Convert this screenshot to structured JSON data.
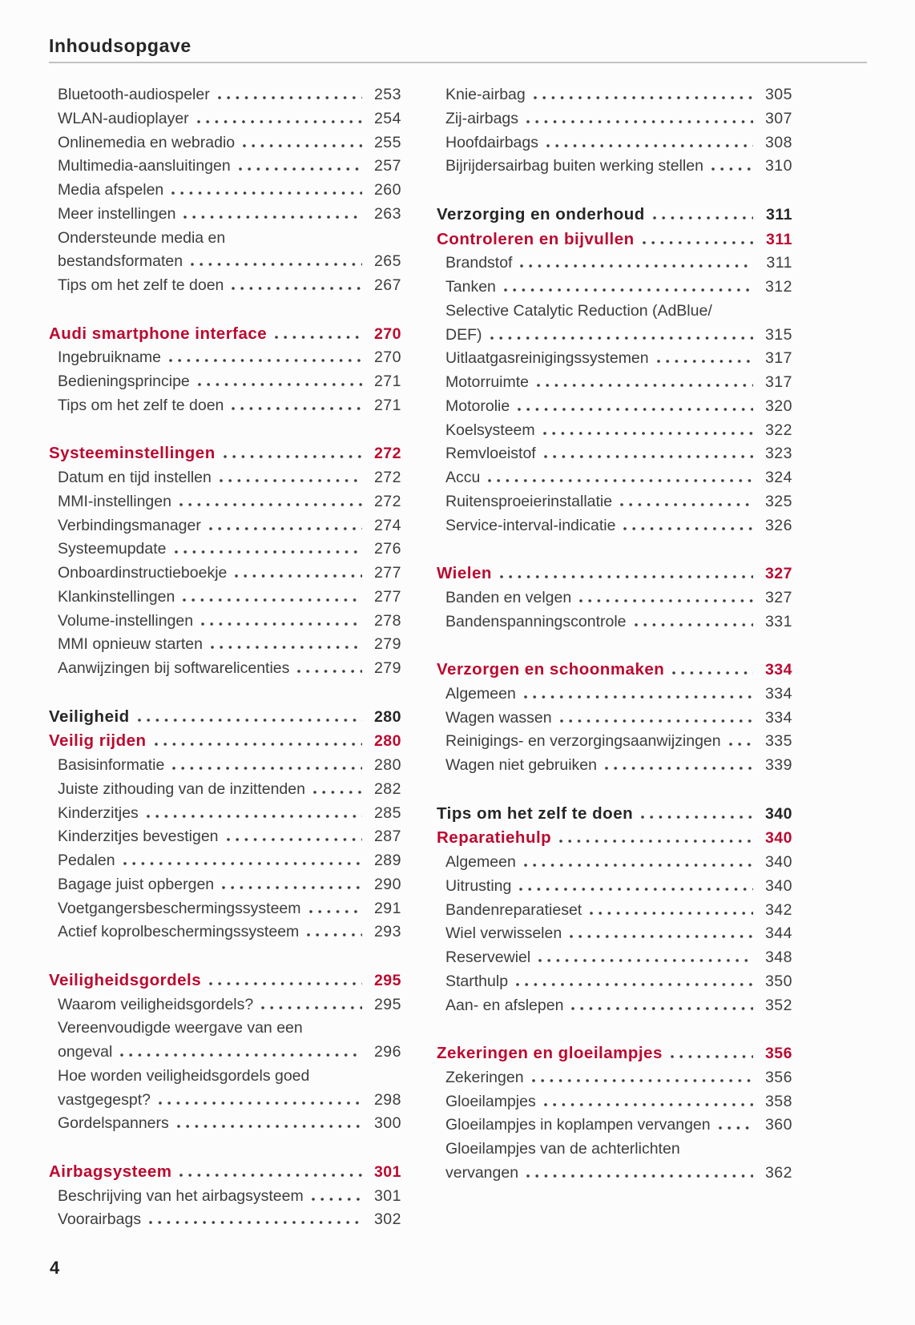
{
  "page": {
    "title": "Inhoudsopgave",
    "page_number": "4",
    "accent_color": "#bb0a30",
    "text_color": "#3d3d3d",
    "heading_color": "#262626",
    "rule_color": "#c2c2c2"
  },
  "toc": {
    "columns": [
      {
        "side": "left",
        "groups": [
          [
            {
              "type": "entry",
              "label": "Bluetooth-audiospeler",
              "page": "253"
            },
            {
              "type": "entry",
              "label": "WLAN-audioplayer",
              "page": "254"
            },
            {
              "type": "entry",
              "label": "Onlinemedia en webradio",
              "page": "255"
            },
            {
              "type": "entry",
              "label": "Multimedia-aansluitingen",
              "page": "257"
            },
            {
              "type": "entry",
              "label": "Media afspelen",
              "page": "260"
            },
            {
              "type": "entry",
              "label": "Meer instellingen",
              "page": "263"
            },
            {
              "type": "entry",
              "label": "Ondersteunde media en",
              "page": null
            },
            {
              "type": "entry",
              "label": "bestandsformaten",
              "page": "265"
            },
            {
              "type": "entry",
              "label": "Tips om het zelf te doen",
              "page": "267"
            }
          ],
          [
            {
              "type": "section",
              "label": "Audi smartphone interface",
              "page": "270"
            },
            {
              "type": "entry",
              "label": "Ingebruikname",
              "page": "270"
            },
            {
              "type": "entry",
              "label": "Bedieningsprincipe",
              "page": "271"
            },
            {
              "type": "entry",
              "label": "Tips om het zelf te doen",
              "page": "271"
            }
          ],
          [
            {
              "type": "section",
              "label": "Systeeminstellingen",
              "page": "272"
            },
            {
              "type": "entry",
              "label": "Datum en tijd instellen",
              "page": "272"
            },
            {
              "type": "entry",
              "label": "MMI-instellingen",
              "page": "272"
            },
            {
              "type": "entry",
              "label": "Verbindingsmanager",
              "page": "274"
            },
            {
              "type": "entry",
              "label": "Systeemupdate",
              "page": "276"
            },
            {
              "type": "entry",
              "label": "Onboardinstructieboekje",
              "page": "277"
            },
            {
              "type": "entry",
              "label": "Klankinstellingen",
              "page": "277"
            },
            {
              "type": "entry",
              "label": "Volume-instellingen",
              "page": "278"
            },
            {
              "type": "entry",
              "label": "MMI opnieuw starten",
              "page": "279"
            },
            {
              "type": "entry",
              "label": "Aanwijzingen bij softwarelicenties",
              "page": "279"
            }
          ],
          [
            {
              "type": "chapter",
              "label": "Veiligheid",
              "page": "280"
            },
            {
              "type": "section",
              "label": "Veilig rijden",
              "page": "280"
            },
            {
              "type": "entry",
              "label": "Basisinformatie",
              "page": "280"
            },
            {
              "type": "entry",
              "label": "Juiste zithouding van de inzittenden",
              "page": "282"
            },
            {
              "type": "entry",
              "label": "Kinderzitjes",
              "page": "285"
            },
            {
              "type": "entry",
              "label": "Kinderzitjes bevestigen",
              "page": "287"
            },
            {
              "type": "entry",
              "label": "Pedalen",
              "page": "289"
            },
            {
              "type": "entry",
              "label": "Bagage juist opbergen",
              "page": "290"
            },
            {
              "type": "entry",
              "label": "Voetgangersbeschermingssysteem",
              "page": "291"
            },
            {
              "type": "entry",
              "label": "Actief koprolbeschermingssysteem",
              "page": "293"
            }
          ],
          [
            {
              "type": "section",
              "label": "Veiligheidsgordels",
              "page": "295"
            },
            {
              "type": "entry",
              "label": "Waarom veiligheidsgordels?",
              "page": "295"
            },
            {
              "type": "entry",
              "label": "Vereenvoudigde weergave van een",
              "page": null
            },
            {
              "type": "entry",
              "label": "ongeval",
              "page": "296"
            },
            {
              "type": "entry",
              "label": "Hoe worden veiligheidsgordels goed",
              "page": null
            },
            {
              "type": "entry",
              "label": "vastgegespt?",
              "page": "298"
            },
            {
              "type": "entry",
              "label": "Gordelspanners",
              "page": "300"
            }
          ],
          [
            {
              "type": "section",
              "label": "Airbagsysteem",
              "page": "301"
            },
            {
              "type": "entry",
              "label": "Beschrijving van het airbagsysteem",
              "page": "301"
            },
            {
              "type": "entry",
              "label": "Voorairbags",
              "page": "302"
            }
          ]
        ]
      },
      {
        "side": "right",
        "groups": [
          [
            {
              "type": "entry",
              "label": "Knie-airbag",
              "page": "305"
            },
            {
              "type": "entry",
              "label": "Zij-airbags",
              "page": "307"
            },
            {
              "type": "entry",
              "label": "Hoofdairbags",
              "page": "308"
            },
            {
              "type": "entry",
              "label": "Bijrijdersairbag buiten werking stellen",
              "page": "310"
            }
          ],
          [
            {
              "type": "chapter",
              "label": "Verzorging en onderhoud",
              "page": "311"
            },
            {
              "type": "section",
              "label": "Controleren en bijvullen",
              "page": "311"
            },
            {
              "type": "entry",
              "label": "Brandstof",
              "page": "311"
            },
            {
              "type": "entry",
              "label": "Tanken",
              "page": "312"
            },
            {
              "type": "entry",
              "label": "Selective Catalytic Reduction (AdBlue/",
              "page": null
            },
            {
              "type": "entry",
              "label": "DEF)",
              "page": "315"
            },
            {
              "type": "entry",
              "label": "Uitlaatgasreinigingssystemen",
              "page": "317"
            },
            {
              "type": "entry",
              "label": "Motorruimte",
              "page": "317"
            },
            {
              "type": "entry",
              "label": "Motorolie",
              "page": "320"
            },
            {
              "type": "entry",
              "label": "Koelsysteem",
              "page": "322"
            },
            {
              "type": "entry",
              "label": "Remvloeistof",
              "page": "323"
            },
            {
              "type": "entry",
              "label": "Accu",
              "page": "324"
            },
            {
              "type": "entry",
              "label": "Ruitensproeierinstallatie",
              "page": "325"
            },
            {
              "type": "entry",
              "label": "Service-interval-indicatie",
              "page": "326"
            }
          ],
          [
            {
              "type": "section",
              "label": "Wielen",
              "page": "327"
            },
            {
              "type": "entry",
              "label": "Banden en velgen",
              "page": "327"
            },
            {
              "type": "entry",
              "label": "Bandenspanningscontrole",
              "page": "331"
            }
          ],
          [
            {
              "type": "section",
              "label": "Verzorgen en schoonmaken",
              "page": "334"
            },
            {
              "type": "entry",
              "label": "Algemeen",
              "page": "334"
            },
            {
              "type": "entry",
              "label": "Wagen wassen",
              "page": "334"
            },
            {
              "type": "entry",
              "label": "Reinigings- en verzorgingsaanwijzingen",
              "page": "335"
            },
            {
              "type": "entry",
              "label": "Wagen niet gebruiken",
              "page": "339"
            }
          ],
          [
            {
              "type": "chapter",
              "label": "Tips om het zelf te doen",
              "page": "340"
            },
            {
              "type": "section",
              "label": "Reparatiehulp",
              "page": "340"
            },
            {
              "type": "entry",
              "label": "Algemeen",
              "page": "340"
            },
            {
              "type": "entry",
              "label": "Uitrusting",
              "page": "340"
            },
            {
              "type": "entry",
              "label": "Bandenreparatieset",
              "page": "342"
            },
            {
              "type": "entry",
              "label": "Wiel verwisselen",
              "page": "344"
            },
            {
              "type": "entry",
              "label": "Reservewiel",
              "page": "348"
            },
            {
              "type": "entry",
              "label": "Starthulp",
              "page": "350"
            },
            {
              "type": "entry",
              "label": "Aan- en afslepen",
              "page": "352"
            }
          ],
          [
            {
              "type": "section",
              "label": "Zekeringen en gloeilampjes",
              "page": "356"
            },
            {
              "type": "entry",
              "label": "Zekeringen",
              "page": "356"
            },
            {
              "type": "entry",
              "label": "Gloeilampjes",
              "page": "358"
            },
            {
              "type": "entry",
              "label": "Gloeilampjes in koplampen vervangen",
              "page": "360"
            },
            {
              "type": "entry",
              "label": "Gloeilampjes van de achterlichten",
              "page": null
            },
            {
              "type": "entry",
              "label": "vervangen",
              "page": "362"
            }
          ]
        ]
      }
    ]
  }
}
